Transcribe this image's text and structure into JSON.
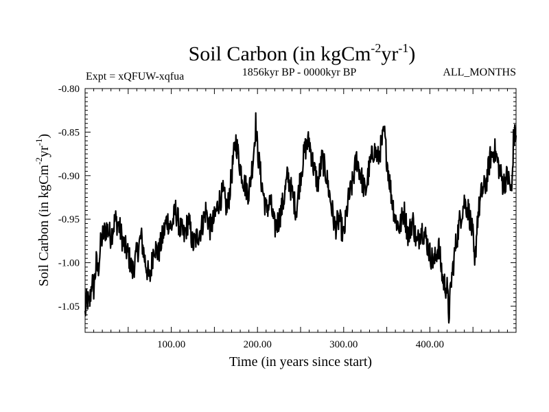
{
  "chart_data": {
    "type": "line",
    "title": "Soil Carbon (in kgCm",
    "title_unit_sup1": "-2",
    "title_unit_mid": "yr",
    "title_unit_sup2": "-1",
    "title_unit_end": ")",
    "subtitle_left": "Expt = xQFUW-xqfua",
    "subtitle_center": "1856kyr BP - 0000kyr BP",
    "subtitle_right": "ALL_MONTHS",
    "xlabel": "Time (in years since start)",
    "ylabel": "Soil Carbon (in kgCm",
    "ylabel_sup1": "-2",
    "ylabel_mid": "yr",
    "ylabel_sup2": "-1",
    "ylabel_end": ")",
    "xlim": [
      0,
      500
    ],
    "ylim": [
      -1.08,
      -0.8
    ],
    "xticks": [
      100,
      200,
      300,
      400
    ],
    "xtick_labels": [
      "100.00",
      "200.00",
      "300.00",
      "400.00"
    ],
    "yticks": [
      -0.8,
      -0.85,
      -0.9,
      -0.95,
      -1.0,
      -1.05
    ],
    "ytick_labels": [
      "-0.80",
      "-0.85",
      "-0.90",
      "-0.95",
      "-1.00",
      "-1.05"
    ],
    "grid": false,
    "line_color": "#000000",
    "series": [
      {
        "name": "soil_carbon",
        "x": [
          0,
          2,
          5,
          8,
          10,
          13,
          15,
          18,
          20,
          25,
          30,
          35,
          40,
          45,
          50,
          55,
          60,
          65,
          70,
          75,
          80,
          85,
          90,
          95,
          100,
          105,
          110,
          115,
          120,
          125,
          130,
          135,
          140,
          145,
          150,
          155,
          160,
          165,
          170,
          172,
          175,
          180,
          185,
          190,
          195,
          198,
          200,
          205,
          210,
          215,
          220,
          225,
          230,
          235,
          240,
          245,
          250,
          255,
          260,
          265,
          270,
          275,
          280,
          285,
          290,
          295,
          300,
          305,
          310,
          315,
          320,
          325,
          330,
          335,
          340,
          345,
          347,
          350,
          355,
          360,
          365,
          370,
          375,
          380,
          385,
          390,
          395,
          400,
          405,
          410,
          415,
          420,
          422,
          425,
          430,
          435,
          440,
          445,
          450,
          452,
          455,
          460,
          465,
          470,
          475,
          480,
          485,
          490,
          495,
          497,
          500
        ],
        "y": [
          -1.06,
          -1.04,
          -1.05,
          -1.02,
          -1.03,
          -1.0,
          -1.01,
          -0.98,
          -0.97,
          -0.96,
          -0.97,
          -0.95,
          -0.96,
          -0.98,
          -0.99,
          -1.01,
          -0.99,
          -0.97,
          -1.0,
          -1.02,
          -0.98,
          -0.99,
          -0.97,
          -0.95,
          -0.96,
          -0.94,
          -0.96,
          -0.97,
          -0.95,
          -0.98,
          -0.97,
          -0.96,
          -0.94,
          -0.96,
          -0.95,
          -0.93,
          -0.92,
          -0.94,
          -0.9,
          -0.88,
          -0.86,
          -0.89,
          -0.91,
          -0.92,
          -0.88,
          -0.84,
          -0.87,
          -0.91,
          -0.94,
          -0.93,
          -0.96,
          -0.95,
          -0.93,
          -0.9,
          -0.92,
          -0.94,
          -0.9,
          -0.87,
          -0.86,
          -0.89,
          -0.91,
          -0.88,
          -0.9,
          -0.93,
          -0.96,
          -0.95,
          -0.97,
          -0.93,
          -0.91,
          -0.88,
          -0.9,
          -0.92,
          -0.89,
          -0.87,
          -0.88,
          -0.86,
          -0.85,
          -0.88,
          -0.92,
          -0.95,
          -0.96,
          -0.94,
          -0.97,
          -0.95,
          -0.98,
          -0.96,
          -0.97,
          -0.99,
          -1.0,
          -0.98,
          -1.02,
          -1.03,
          -1.06,
          -1.02,
          -0.98,
          -0.95,
          -0.93,
          -0.94,
          -0.97,
          -1.01,
          -0.95,
          -0.92,
          -0.91,
          -0.88,
          -0.87,
          -0.89,
          -0.91,
          -0.9,
          -0.92,
          -0.86,
          -0.85
        ]
      }
    ]
  }
}
